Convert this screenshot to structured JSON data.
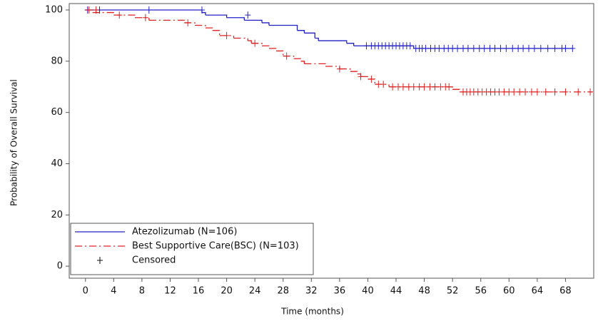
{
  "chart_data": {
    "type": "step",
    "x_label": "Time (months)",
    "y_label": "Probability of Overall Survival",
    "xlim": [
      -2.3,
      72
    ],
    "ylim": [
      -4.7,
      102.5
    ],
    "xticks": [
      0,
      4,
      8,
      12,
      16,
      20,
      24,
      28,
      32,
      36,
      40,
      44,
      48,
      52,
      56,
      60,
      64,
      68
    ],
    "yticks": [
      0,
      20,
      40,
      60,
      80,
      100
    ],
    "legend": "lower left",
    "censored_label": "Censored",
    "series": [
      {
        "name": "Atezolizumab (N=106)",
        "color": "#2020c8",
        "dash": "solid",
        "x": [
          0,
          16.5,
          17,
          20,
          22.5,
          25,
          26,
          30,
          31,
          32.5,
          33,
          37,
          38,
          39,
          46.5,
          69
        ],
        "values": [
          100,
          99,
          98,
          97,
          96,
          95,
          94,
          92,
          91,
          89,
          88,
          87,
          86,
          86,
          85,
          85
        ],
        "censor_x": [
          0.3,
          2,
          9,
          16.5,
          23,
          39.8,
          40.5,
          41,
          41.5,
          42,
          42.5,
          43,
          43.5,
          44,
          44.5,
          45,
          45.5,
          46,
          46.8,
          47.3,
          47.7,
          48.2,
          48.9,
          49.5,
          50.1,
          50.8,
          51.4,
          52,
          52.7,
          53.5,
          54.2,
          55,
          55.8,
          56.5,
          57.3,
          58,
          58.8,
          59.6,
          60.5,
          61.3,
          62,
          62.8,
          63.6,
          64.5,
          65.5,
          66.5,
          67.5,
          68,
          69
        ],
        "censor_values": [
          100,
          100,
          100,
          100,
          98,
          86,
          86,
          86,
          86,
          86,
          86,
          86,
          86,
          86,
          86,
          86,
          86,
          86,
          85,
          85,
          85,
          85,
          85,
          85,
          85,
          85,
          85,
          85,
          85,
          85,
          85,
          85,
          85,
          85,
          85,
          85,
          85,
          85,
          85,
          85,
          85,
          85,
          85,
          85,
          85,
          85,
          85,
          85,
          85
        ]
      },
      {
        "name": "Best Supportive Care(BSC) (N=103)",
        "color": "#e02020",
        "dash": "dashdot",
        "x": [
          0,
          1,
          4,
          7,
          9,
          14,
          15.5,
          17,
          18,
          19,
          21,
          23,
          23.5,
          25,
          26,
          27,
          28,
          29.5,
          30.5,
          31,
          34,
          36,
          37.5,
          38.5,
          39,
          40,
          41,
          43,
          52,
          53,
          71.8
        ],
        "values": [
          100,
          99,
          98,
          97,
          96,
          95,
          94,
          93,
          92,
          90,
          89,
          88,
          87,
          86,
          85,
          84,
          82,
          81,
          80,
          79,
          78,
          77,
          76,
          75,
          74,
          73,
          71,
          70,
          69,
          68,
          68
        ],
        "censor_x": [
          0.5,
          1.5,
          4.8,
          8.5,
          14.5,
          20,
          24,
          28.5,
          36,
          39,
          40.5,
          41.5,
          42.2,
          43.5,
          44.3,
          45,
          45.8,
          46.5,
          47.3,
          48,
          48.8,
          49.5,
          50.3,
          51,
          51.5,
          53.5,
          54,
          54.5,
          55,
          55.6,
          56.2,
          56.8,
          57.4,
          58,
          58.6,
          59.3,
          60,
          60.7,
          61.5,
          62.3,
          63.2,
          64,
          65.2,
          66.5,
          68,
          69.8,
          71.5
        ],
        "censor_values": [
          100,
          100,
          98,
          97,
          95,
          90,
          87,
          82,
          77,
          74,
          73,
          71,
          71,
          70,
          70,
          70,
          70,
          70,
          70,
          70,
          70,
          70,
          70,
          70,
          70,
          68,
          68,
          68,
          68,
          68,
          68,
          68,
          68,
          68,
          68,
          68,
          68,
          68,
          68,
          68,
          68,
          68,
          68,
          68,
          68,
          68,
          68
        ]
      }
    ]
  }
}
